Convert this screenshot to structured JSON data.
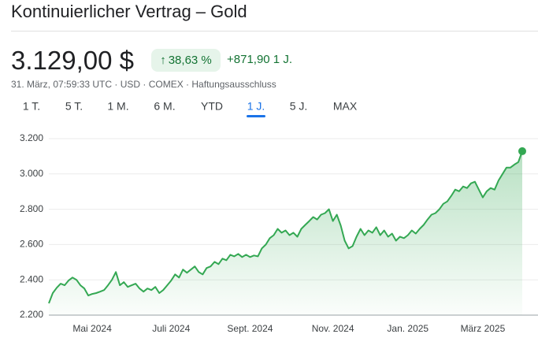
{
  "header": {
    "title": "Kontinuierlicher Vertrag – Gold",
    "price": "3.129,00 $",
    "change_percent": "38,63 %",
    "change": "+871,90 1 J.",
    "details": "31. März, 07:59:33 UTC · USD · COMEX · Haftungsausschluss"
  },
  "tabs": {
    "items": [
      "1 T.",
      "5 T.",
      "1 M.",
      "6 M.",
      "YTD",
      "1 J.",
      "5 J.",
      "MAX"
    ],
    "selected": 5
  },
  "chart_data": {
    "type": "line",
    "color": "#34a853",
    "grid": true,
    "ylim": [
      2200,
      3200
    ],
    "yticks": [
      {
        "value": 2200,
        "label": "2.200"
      },
      {
        "value": 2400,
        "label": "2.400"
      },
      {
        "value": 2600,
        "label": "2.600"
      },
      {
        "value": 2800,
        "label": "2.800"
      },
      {
        "value": 3000,
        "label": "3.000"
      },
      {
        "value": 3200,
        "label": "3.200"
      }
    ],
    "categories": [
      null,
      null,
      null,
      null,
      null,
      null,
      null,
      null,
      null,
      null,
      null,
      "Mai 2024",
      null,
      null,
      null,
      null,
      null,
      null,
      null,
      null,
      null,
      null,
      null,
      null,
      null,
      null,
      null,
      null,
      null,
      null,
      null,
      "Juli 2024",
      null,
      null,
      null,
      null,
      null,
      null,
      null,
      null,
      null,
      null,
      null,
      null,
      null,
      null,
      null,
      null,
      null,
      null,
      null,
      "Sept. 2024",
      null,
      null,
      null,
      null,
      null,
      null,
      null,
      null,
      null,
      null,
      null,
      null,
      null,
      null,
      null,
      null,
      null,
      null,
      null,
      null,
      "Nov. 2024",
      null,
      null,
      null,
      null,
      null,
      null,
      null,
      null,
      null,
      null,
      null,
      null,
      null,
      null,
      null,
      null,
      null,
      null,
      "Jan. 2025",
      null,
      null,
      null,
      null,
      null,
      null,
      null,
      null,
      null,
      null,
      null,
      null,
      null,
      null,
      null,
      null,
      null,
      null,
      "März 2025",
      null,
      null,
      null,
      null,
      null,
      null,
      null,
      null,
      null,
      null
    ],
    "values": [
      2267,
      2325,
      2355,
      2378,
      2369,
      2396,
      2413,
      2400,
      2369,
      2351,
      2311,
      2320,
      2325,
      2333,
      2342,
      2369,
      2400,
      2444,
      2369,
      2387,
      2360,
      2369,
      2378,
      2351,
      2333,
      2351,
      2342,
      2360,
      2325,
      2342,
      2369,
      2396,
      2431,
      2413,
      2458,
      2440,
      2458,
      2476,
      2444,
      2431,
      2467,
      2476,
      2502,
      2489,
      2520,
      2511,
      2542,
      2533,
      2547,
      2529,
      2542,
      2529,
      2538,
      2533,
      2578,
      2600,
      2636,
      2653,
      2689,
      2667,
      2680,
      2653,
      2667,
      2644,
      2689,
      2711,
      2733,
      2756,
      2742,
      2769,
      2778,
      2800,
      2733,
      2769,
      2707,
      2622,
      2578,
      2591,
      2644,
      2689,
      2653,
      2680,
      2667,
      2698,
      2653,
      2680,
      2644,
      2662,
      2622,
      2644,
      2636,
      2653,
      2680,
      2662,
      2689,
      2711,
      2742,
      2769,
      2778,
      2800,
      2831,
      2844,
      2876,
      2911,
      2902,
      2929,
      2920,
      2947,
      2956,
      2911,
      2867,
      2902,
      2920,
      2911,
      2964,
      3000,
      3036,
      3036,
      3053,
      3067,
      3129
    ]
  }
}
